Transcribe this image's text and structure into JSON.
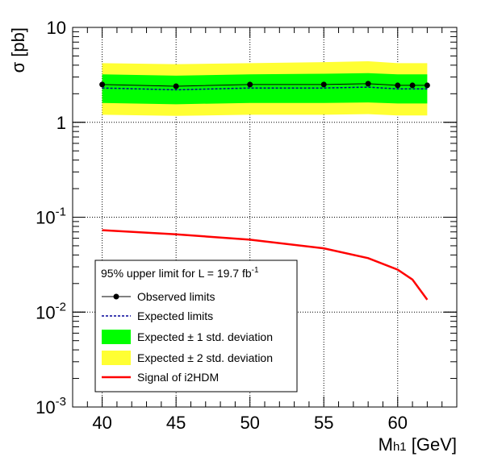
{
  "chart_data": {
    "type": "line",
    "xlabel": "M",
    "xlabel_sub": "h1",
    "xlabel_unit": "[GeV]",
    "ylabel": "σ [pb]",
    "yscale": "log",
    "xlim": [
      38,
      64
    ],
    "ylim": [
      0.001,
      10
    ],
    "grid": true,
    "x_ticks": [
      {
        "v": 40,
        "label": "40"
      },
      {
        "v": 45,
        "label": "45"
      },
      {
        "v": 50,
        "label": "50"
      },
      {
        "v": 55,
        "label": "55"
      },
      {
        "v": 60,
        "label": "60"
      }
    ],
    "y_ticks": [
      {
        "v": 10,
        "base": "10",
        "exp": ""
      },
      {
        "v": 1,
        "base": "1",
        "exp": ""
      },
      {
        "v": 0.1,
        "base": "10",
        "exp": "-1"
      },
      {
        "v": 0.01,
        "base": "10",
        "exp": "-2"
      },
      {
        "v": 0.001,
        "base": "10",
        "exp": "-3"
      }
    ],
    "band_x": [
      40,
      45,
      50,
      55,
      58,
      60,
      61,
      62
    ],
    "observed": {
      "x": [
        40,
        45,
        50,
        55,
        58,
        60,
        61,
        62
      ],
      "y": [
        2.5,
        2.4,
        2.5,
        2.5,
        2.55,
        2.45,
        2.45,
        2.45
      ]
    },
    "expected": {
      "y": [
        2.3,
        2.2,
        2.3,
        2.3,
        2.35,
        2.25,
        2.25,
        2.25
      ]
    },
    "band_1sigma": {
      "low": [
        1.6,
        1.55,
        1.6,
        1.6,
        1.62,
        1.58,
        1.58,
        1.58
      ],
      "high": [
        3.2,
        3.1,
        3.2,
        3.25,
        3.3,
        3.2,
        3.2,
        3.2
      ]
    },
    "band_2sigma": {
      "low": [
        1.2,
        1.17,
        1.2,
        1.2,
        1.22,
        1.18,
        1.18,
        1.18
      ],
      "high": [
        4.2,
        4.1,
        4.2,
        4.3,
        4.4,
        4.2,
        4.2,
        4.2
      ]
    },
    "signal": {
      "x": [
        40,
        45,
        50,
        55,
        58,
        60,
        61,
        62
      ],
      "y": [
        0.073,
        0.066,
        0.058,
        0.047,
        0.037,
        0.028,
        0.022,
        0.0135
      ]
    },
    "colors": {
      "observed": "#000000",
      "expected": "#000099",
      "band_1sigma": "#00ff00",
      "band_2sigma": "#ffff33",
      "signal": "#ff0000",
      "grid": "#000000"
    },
    "legend": {
      "placement": "bottom-left",
      "title_prefix": "95% upper limit for L = 19.7 fb",
      "title_sup": "-1",
      "entries": [
        {
          "key": "observed",
          "label": "Observed limits"
        },
        {
          "key": "expected",
          "label": "Expected limits"
        },
        {
          "key": "band_1sigma",
          "label": "Expected ± 1 std. deviation"
        },
        {
          "key": "band_2sigma",
          "label": "Expected ± 2 std. deviation"
        },
        {
          "key": "signal",
          "label": "Signal of i2HDM"
        }
      ]
    }
  }
}
